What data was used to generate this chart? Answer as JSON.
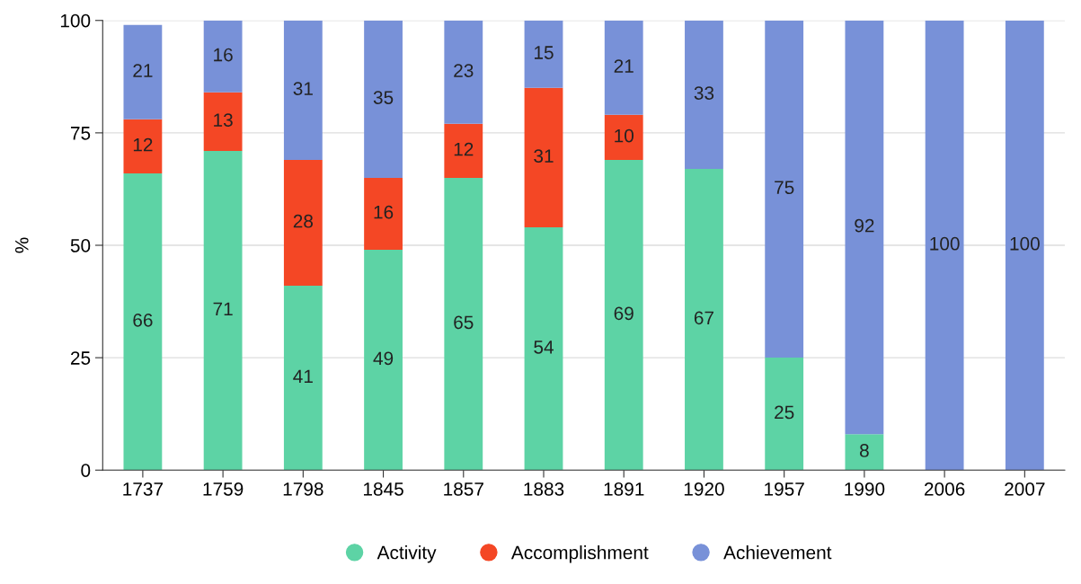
{
  "chart_data": {
    "type": "bar",
    "stacked": true,
    "ylabel": "%",
    "categories": [
      "1737",
      "1759",
      "1798",
      "1845",
      "1857",
      "1883",
      "1891",
      "1920",
      "1957",
      "1990",
      "2006",
      "2007"
    ],
    "series": [
      {
        "name": "Activity",
        "color": "#5dd3a5",
        "values": [
          66,
          71,
          41,
          49,
          65,
          54,
          69,
          67,
          25,
          8,
          null,
          null
        ]
      },
      {
        "name": "Accomplishment",
        "color": "#f44725",
        "values": [
          12,
          13,
          28,
          16,
          12,
          31,
          10,
          null,
          null,
          null,
          null,
          null
        ]
      },
      {
        "name": "Achievement",
        "color": "#7891d8",
        "values": [
          21,
          16,
          31,
          35,
          23,
          15,
          21,
          33,
          75,
          92,
          100,
          100
        ]
      }
    ],
    "ylim": [
      0,
      100
    ],
    "yticks": [
      0,
      25,
      50,
      75,
      100
    ],
    "grid": "y",
    "legend": "bottom",
    "data_labels": true
  }
}
